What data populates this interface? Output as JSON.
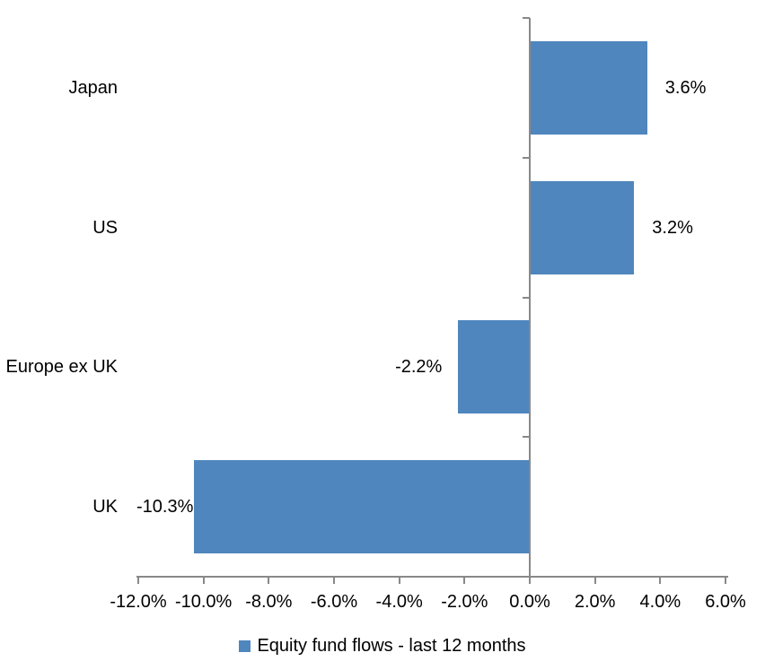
{
  "chart_data": {
    "type": "bar",
    "orientation": "horizontal",
    "title": "",
    "xlabel": "",
    "ylabel": "",
    "categories": [
      "Japan",
      "US",
      "Europe ex UK",
      "UK"
    ],
    "values": [
      3.6,
      3.2,
      -2.2,
      -10.3
    ],
    "value_labels": [
      "3.6%",
      "3.2%",
      "-2.2%",
      "-10.3%"
    ],
    "series_name": "Equity fund flows - last 12 months",
    "xlim": [
      -12,
      6
    ],
    "x_tick_step": 2,
    "x_tick_labels": [
      "-12.0%",
      "-10.0%",
      "-8.0%",
      "-6.0%",
      "-4.0%",
      "-2.0%",
      "0.0%",
      "2.0%",
      "4.0%",
      "6.0%"
    ],
    "grid": false,
    "legend_position": "bottom",
    "colors": {
      "bar": "#4F86BD",
      "axis": "#898989",
      "text": "#000000",
      "background": "#FFFFFF"
    }
  }
}
